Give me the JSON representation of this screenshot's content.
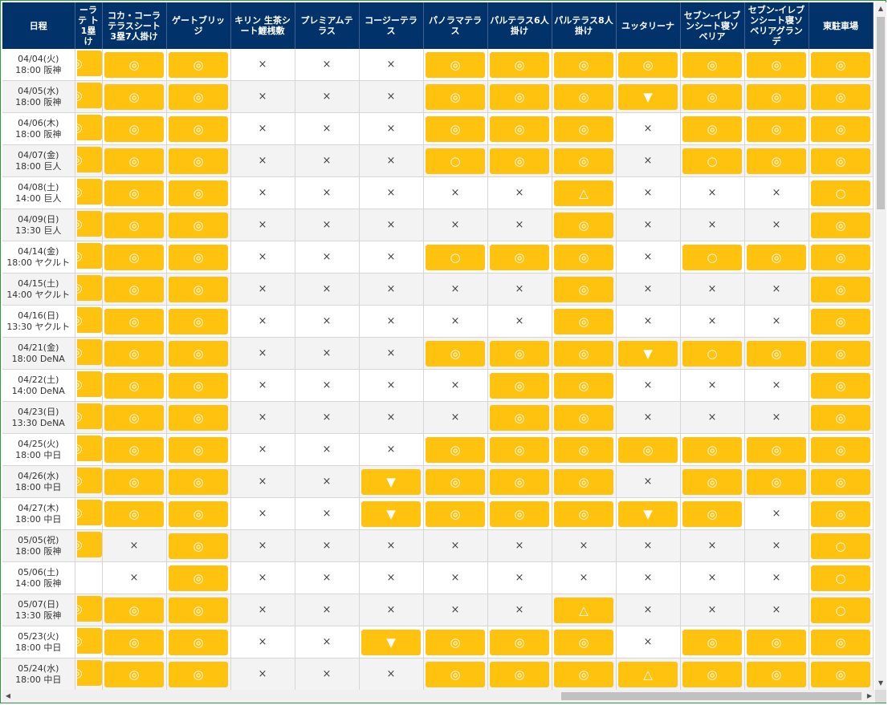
{
  "columns": [
    {
      "key": "date",
      "label": "日程"
    },
    {
      "key": "c1",
      "label": "ーラテ ト 1塁 け"
    },
    {
      "key": "c2",
      "label": "コカ・コーラテラスシート 3塁7人掛け"
    },
    {
      "key": "c3",
      "label": "ゲートブリッジ"
    },
    {
      "key": "c4",
      "label": "キリン 生茶シート鯉桟敷"
    },
    {
      "key": "c5",
      "label": "プレミアムテラス"
    },
    {
      "key": "c6",
      "label": "コージーテラス"
    },
    {
      "key": "c7",
      "label": "パノラマテラス"
    },
    {
      "key": "c8",
      "label": "パルテラス6人掛け"
    },
    {
      "key": "c9",
      "label": "パルテラス8人掛け"
    },
    {
      "key": "c10",
      "label": "ユッタリーナ"
    },
    {
      "key": "c11",
      "label": "セブン-イレブンシート寝ソベリア"
    },
    {
      "key": "c12",
      "label": "セブン-イレブンシート寝ソベリアグランデ"
    },
    {
      "key": "c13",
      "label": "東駐車場"
    }
  ],
  "rows": [
    {
      "date": "04/04(火)",
      "game": "18:00 阪神",
      "cells": [
        "◎",
        "◎",
        "◎",
        "×",
        "×",
        "×",
        "◎",
        "◎",
        "◎",
        "◎",
        "◎",
        "◎",
        "◎"
      ]
    },
    {
      "date": "04/05(水)",
      "game": "18:00 阪神",
      "cells": [
        "◎",
        "◎",
        "◎",
        "×",
        "×",
        "×",
        "◎",
        "◎",
        "◎",
        "▼",
        "◎",
        "◎",
        "◎"
      ]
    },
    {
      "date": "04/06(木)",
      "game": "18:00 阪神",
      "cells": [
        "◎",
        "◎",
        "◎",
        "×",
        "×",
        "×",
        "◎",
        "◎",
        "◎",
        "×",
        "◎",
        "◎",
        "◎"
      ]
    },
    {
      "date": "04/07(金)",
      "game": "18:00 巨人",
      "cells": [
        "◎",
        "◎",
        "◎",
        "×",
        "×",
        "×",
        "○",
        "◎",
        "◎",
        "×",
        "○",
        "◎",
        "◎"
      ]
    },
    {
      "date": "04/08(土)",
      "game": "14:00 巨人",
      "cells": [
        "◎",
        "◎",
        "◎",
        "×",
        "×",
        "×",
        "×",
        "×",
        "△",
        "×",
        "×",
        "×",
        "○"
      ]
    },
    {
      "date": "04/09(日)",
      "game": "13:30 巨人",
      "cells": [
        "◎",
        "◎",
        "◎",
        "×",
        "×",
        "×",
        "×",
        "×",
        "◎",
        "×",
        "×",
        "×",
        "◎"
      ]
    },
    {
      "date": "04/14(金)",
      "game": "18:00 ヤクルト",
      "cells": [
        "◎",
        "◎",
        "◎",
        "×",
        "×",
        "×",
        "○",
        "◎",
        "◎",
        "×",
        "○",
        "◎",
        "◎"
      ]
    },
    {
      "date": "04/15(土)",
      "game": "14:00 ヤクルト",
      "cells": [
        "◎",
        "◎",
        "◎",
        "×",
        "×",
        "×",
        "×",
        "×",
        "◎",
        "×",
        "×",
        "×",
        "◎"
      ]
    },
    {
      "date": "04/16(日)",
      "game": "13:30 ヤクルト",
      "cells": [
        "◎",
        "◎",
        "◎",
        "×",
        "×",
        "×",
        "×",
        "×",
        "◎",
        "×",
        "×",
        "×",
        "◎"
      ]
    },
    {
      "date": "04/21(金)",
      "game": "18:00 DeNA",
      "cells": [
        "◎",
        "◎",
        "◎",
        "×",
        "×",
        "×",
        "◎",
        "◎",
        "◎",
        "▼",
        "○",
        "◎",
        "◎"
      ]
    },
    {
      "date": "04/22(土)",
      "game": "14:00 DeNA",
      "cells": [
        "◎",
        "◎",
        "◎",
        "×",
        "×",
        "×",
        "×",
        "◎",
        "◎",
        "×",
        "×",
        "×",
        "◎"
      ]
    },
    {
      "date": "04/23(日)",
      "game": "13:30 DeNA",
      "cells": [
        "◎",
        "◎",
        "◎",
        "×",
        "×",
        "×",
        "×",
        "◎",
        "◎",
        "×",
        "×",
        "×",
        "◎"
      ]
    },
    {
      "date": "04/25(火)",
      "game": "18:00 中日",
      "cells": [
        "◎",
        "◎",
        "◎",
        "×",
        "×",
        "×",
        "◎",
        "◎",
        "◎",
        "◎",
        "◎",
        "◎",
        "◎"
      ]
    },
    {
      "date": "04/26(水)",
      "game": "18:00 中日",
      "cells": [
        "◎",
        "◎",
        "◎",
        "×",
        "×",
        "▼",
        "◎",
        "◎",
        "◎",
        "×",
        "◎",
        "◎",
        "◎"
      ]
    },
    {
      "date": "04/27(木)",
      "game": "18:00 中日",
      "cells": [
        "◎",
        "◎",
        "◎",
        "×",
        "×",
        "▼",
        "◎",
        "◎",
        "◎",
        "▼",
        "◎",
        "×",
        "◎"
      ]
    },
    {
      "date": "05/05(祝)",
      "game": "18:00 阪神",
      "cells": [
        "◎",
        "×",
        "◎",
        "×",
        "×",
        "×",
        "×",
        "×",
        "×",
        "×",
        "×",
        "×",
        "○"
      ]
    },
    {
      "date": "05/06(土)",
      "game": "14:00 阪神",
      "cells": [
        "",
        "×",
        "◎",
        "×",
        "×",
        "×",
        "×",
        "×",
        "×",
        "×",
        "×",
        "×",
        "○"
      ]
    },
    {
      "date": "05/07(日)",
      "game": "13:30 阪神",
      "cells": [
        "◎",
        "◎",
        "◎",
        "×",
        "×",
        "×",
        "×",
        "×",
        "△",
        "×",
        "×",
        "×",
        "○"
      ]
    },
    {
      "date": "05/23(火)",
      "game": "18:00 中日",
      "cells": [
        "◎",
        "◎",
        "◎",
        "×",
        "×",
        "▼",
        "◎",
        "◎",
        "◎",
        "×",
        "◎",
        "◎",
        "◎"
      ]
    },
    {
      "date": "05/24(水)",
      "game": "18:00 中日",
      "cells": [
        "◎",
        "◎",
        "◎",
        "×",
        "×",
        "×",
        "◎",
        "◎",
        "◎",
        "△",
        "◎",
        "◎",
        "◎"
      ]
    }
  ],
  "colors": {
    "header_bg": "#01336a",
    "available_bg": "#ffc20e",
    "frame": "#2e9b3c"
  }
}
